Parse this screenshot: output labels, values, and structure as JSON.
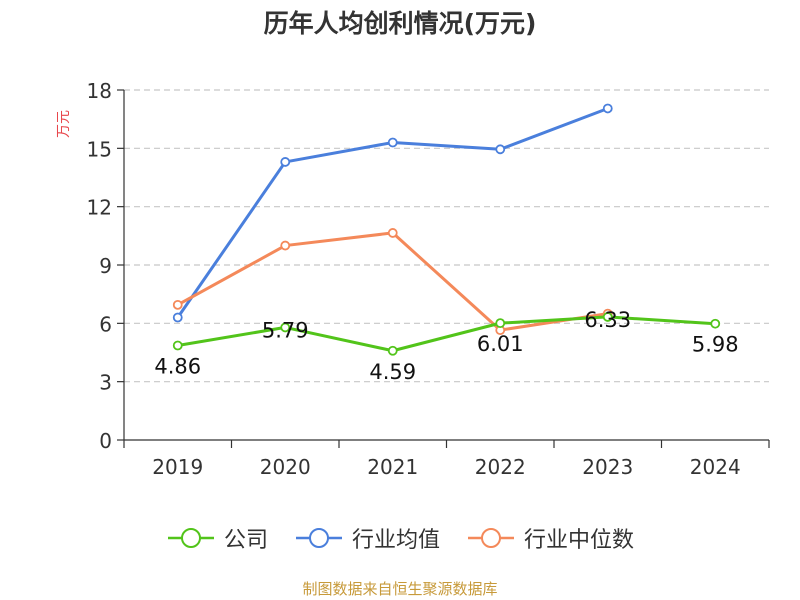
{
  "colors": {
    "company": "#52c41a",
    "industry_avg": "#4a7fdc",
    "industry_median": "#f4895a",
    "ylabel": "#e8474c",
    "source": "#c79a3a",
    "grid": "#c8c8c8",
    "axis": "#333333"
  },
  "legend": [
    {
      "key": "company",
      "label": "公司"
    },
    {
      "key": "industry_avg",
      "label": "行业均值"
    },
    {
      "key": "industry_median",
      "label": "行业中位数"
    }
  ],
  "source_text": "制图数据来自恒生聚源数据库",
  "chart_data": {
    "type": "line",
    "title": "历年人均创利情况(万元)",
    "ylabel": "万元",
    "xlabel": "",
    "categories": [
      "2019",
      "2020",
      "2021",
      "2022",
      "2023",
      "2024"
    ],
    "ylim": [
      0,
      18
    ],
    "yticks": [
      0,
      3,
      6,
      9,
      12,
      15,
      18
    ],
    "grid": true,
    "legend_position": "bottom",
    "series": [
      {
        "key": "company",
        "name": "公司",
        "values": [
          4.86,
          5.79,
          4.59,
          6.01,
          6.33,
          5.98
        ],
        "show_labels": true
      },
      {
        "key": "industry_avg",
        "name": "行业均值",
        "values": [
          6.3,
          14.3,
          15.3,
          14.95,
          17.05,
          null
        ],
        "show_labels": false
      },
      {
        "key": "industry_median",
        "name": "行业中位数",
        "values": [
          6.95,
          10.0,
          10.65,
          5.65,
          6.5,
          null
        ],
        "show_labels": false
      }
    ]
  }
}
